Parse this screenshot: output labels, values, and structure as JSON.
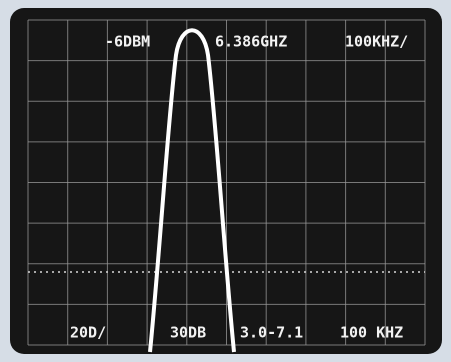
{
  "screen": {
    "top": {
      "reference_level": "-6DBM",
      "center_frequency": "6.386GHZ",
      "span": "100KHZ/"
    },
    "bottom": {
      "scale": "20D/",
      "attenuation": "30DB",
      "band": "3.0-7.1",
      "bandwidth": "100 KHZ"
    }
  }
}
